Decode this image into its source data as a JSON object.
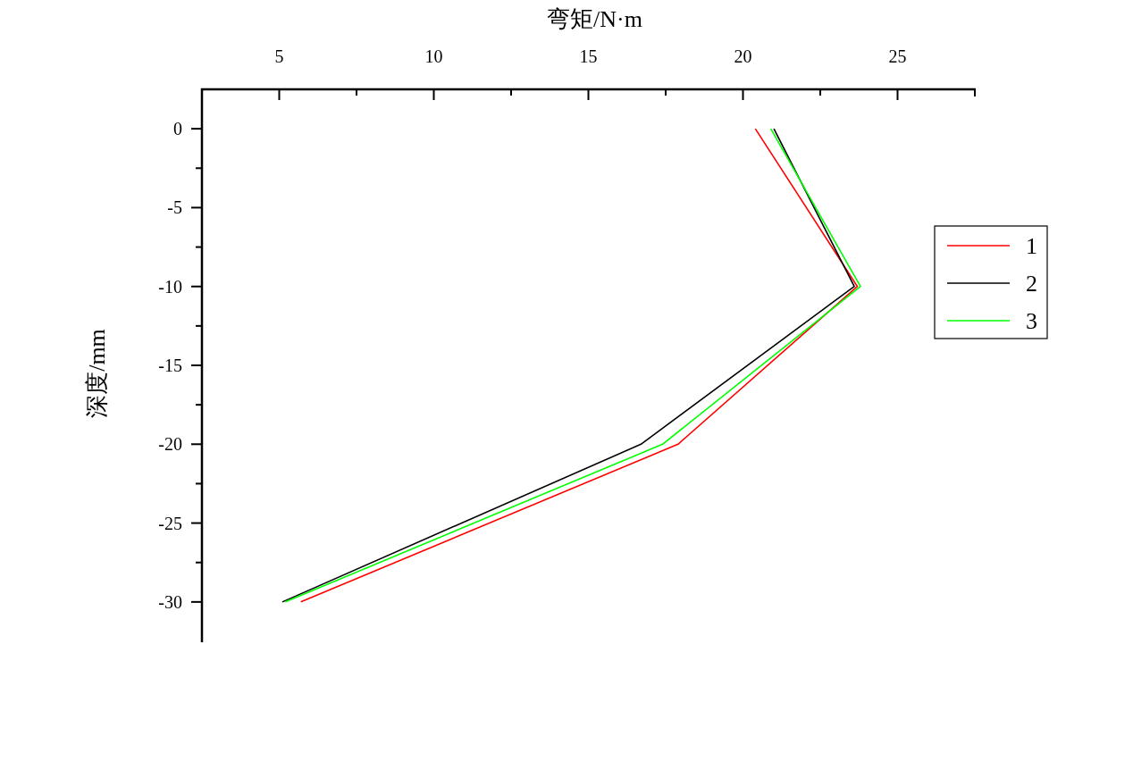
{
  "chart_data": {
    "type": "line",
    "xlabel": "弯矩/N·m",
    "ylabel": "深度/mm",
    "xlim": [
      2.5,
      27.5
    ],
    "xticks": [
      5,
      10,
      15,
      20,
      25
    ],
    "ylim": [
      -32.5,
      2.5
    ],
    "yticks": [
      0,
      -5,
      -10,
      -15,
      -20,
      -25,
      -30
    ],
    "legend": "right",
    "grid": false,
    "marker": "none",
    "line_style": "solid",
    "series": [
      {
        "name": "1",
        "color": "#ff0000",
        "x": [
          20.4,
          23.7,
          17.9,
          5.7
        ],
        "values": [
          0,
          -10,
          -20,
          -30
        ]
      },
      {
        "name": "2",
        "color": "#000000",
        "x": [
          21.0,
          23.6,
          16.7,
          5.1
        ],
        "values": [
          0,
          -10,
          -20,
          -30
        ]
      },
      {
        "name": "3",
        "color": "#00ff00",
        "x": [
          20.9,
          23.8,
          17.4,
          5.2
        ],
        "values": [
          0,
          -10,
          -20,
          -30
        ]
      }
    ]
  }
}
